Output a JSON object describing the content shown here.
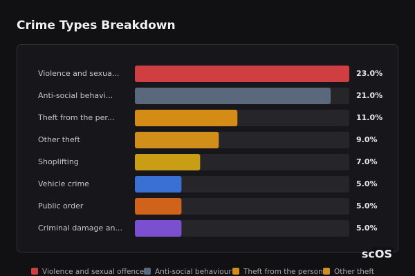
{
  "chart_data": {
    "type": "bar",
    "title": "Crime Types Breakdown",
    "categories": [
      "Violence and sexua...",
      "Anti-social behavi...",
      "Theft from the per...",
      "Other theft",
      "Shoplifting",
      "Vehicle crime",
      "Public order",
      "Criminal damage an..."
    ],
    "values": [
      23,
      21,
      11,
      9,
      7,
      5,
      5,
      5
    ],
    "value_labels": [
      "23.0%",
      "21.0%",
      "11.0%",
      "9.0%",
      "7.0%",
      "5.0%",
      "5.0%",
      "5.0%"
    ],
    "colors": [
      "#cf3f42",
      "#5a687c",
      "#d48c17",
      "#d18f1a",
      "#c99e16",
      "#3a70d2",
      "#d0631b",
      "#7a50d0"
    ],
    "xlim": [
      0,
      23
    ],
    "legend": [
      "Violence and sexual offences",
      "Anti-social behaviour",
      "Theft from the person",
      "Other theft"
    ]
  },
  "watermark": "scOS"
}
